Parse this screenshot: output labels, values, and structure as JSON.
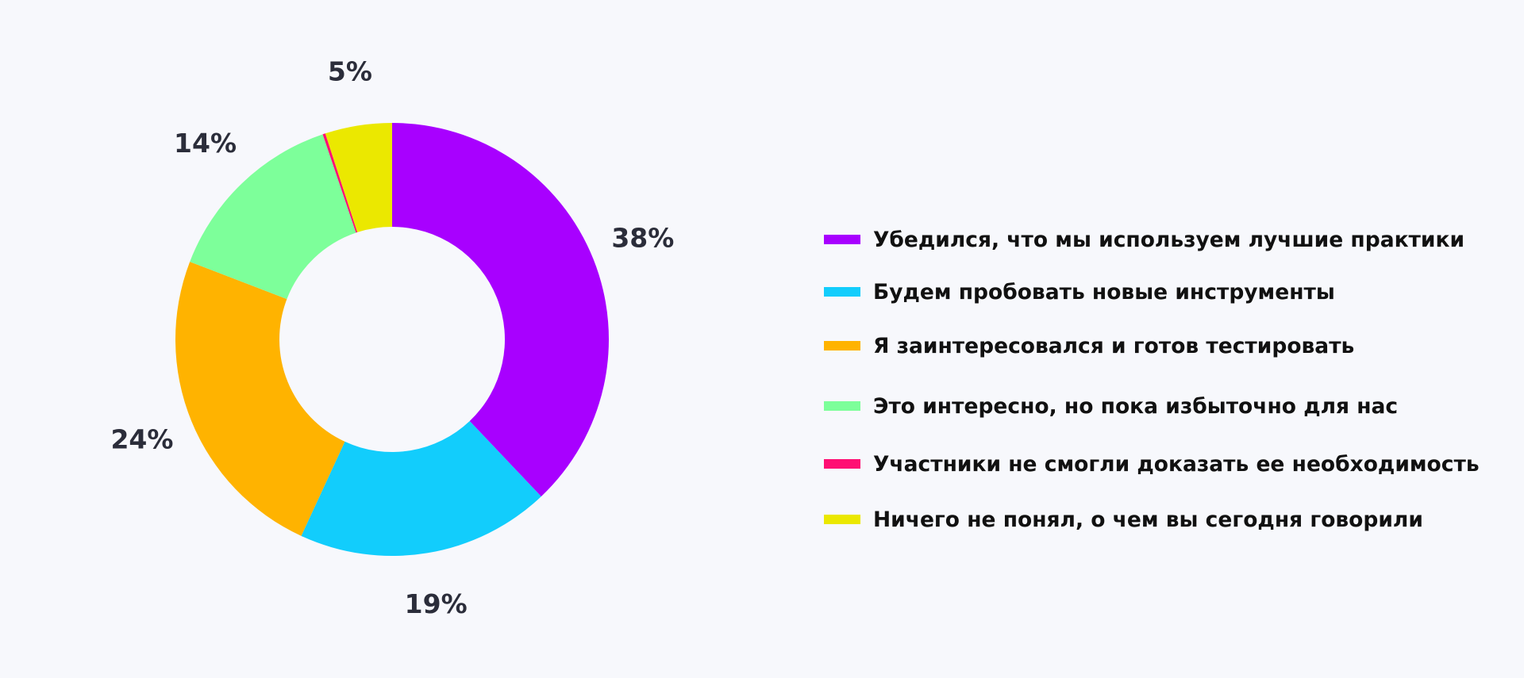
{
  "chart_data": {
    "type": "pie",
    "donut": true,
    "slices": [
      {
        "label": "Убедился, что мы используем лучшие практики",
        "value": 38,
        "value_label": "38%",
        "color": "#a800ff"
      },
      {
        "label": "Будем пробовать новые инструменты",
        "value": 19,
        "value_label": "19%",
        "color": "#12cdfc"
      },
      {
        "label": "Я заинтересовался и готов тестировать",
        "value": 24,
        "value_label": "24%",
        "color": "#ffb300"
      },
      {
        "label": "Это интересно, но пока избыточно для нас",
        "value": 14,
        "value_label": "14%",
        "color": "#7dff9a"
      },
      {
        "label": "Участники не смогли доказать ее необходимость",
        "value": 0.2,
        "value_label": "",
        "color": "#ff0f73"
      },
      {
        "label": "Ничего не понял, о чем вы сегодня говорили",
        "value": 5,
        "value_label": "5%",
        "color": "#ebe800"
      }
    ],
    "legend_position": "right"
  }
}
